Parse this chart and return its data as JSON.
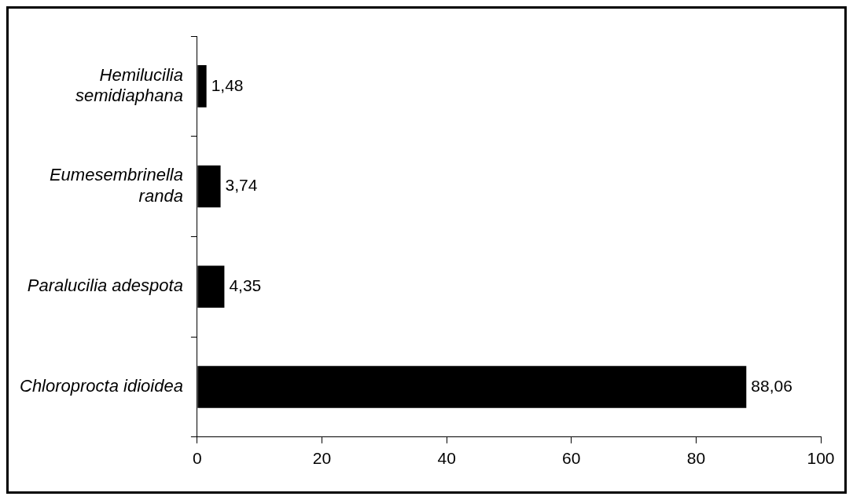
{
  "chart_data": {
    "type": "bar",
    "orientation": "horizontal",
    "categories": [
      "Hemilucilia\nsemidiaphana",
      "Eumesembrinella\nranda",
      "Paralucilia adespota",
      "Chloroprocta idioidea"
    ],
    "values": [
      1.48,
      3.74,
      4.35,
      88.06
    ],
    "value_labels": [
      "1,48",
      "3,74",
      "4,35",
      "88,06"
    ],
    "color": "#000000",
    "xlim": [
      0,
      100
    ],
    "xticks": [
      0,
      20,
      40,
      60,
      80,
      100
    ],
    "grid": false,
    "legend": false
  }
}
